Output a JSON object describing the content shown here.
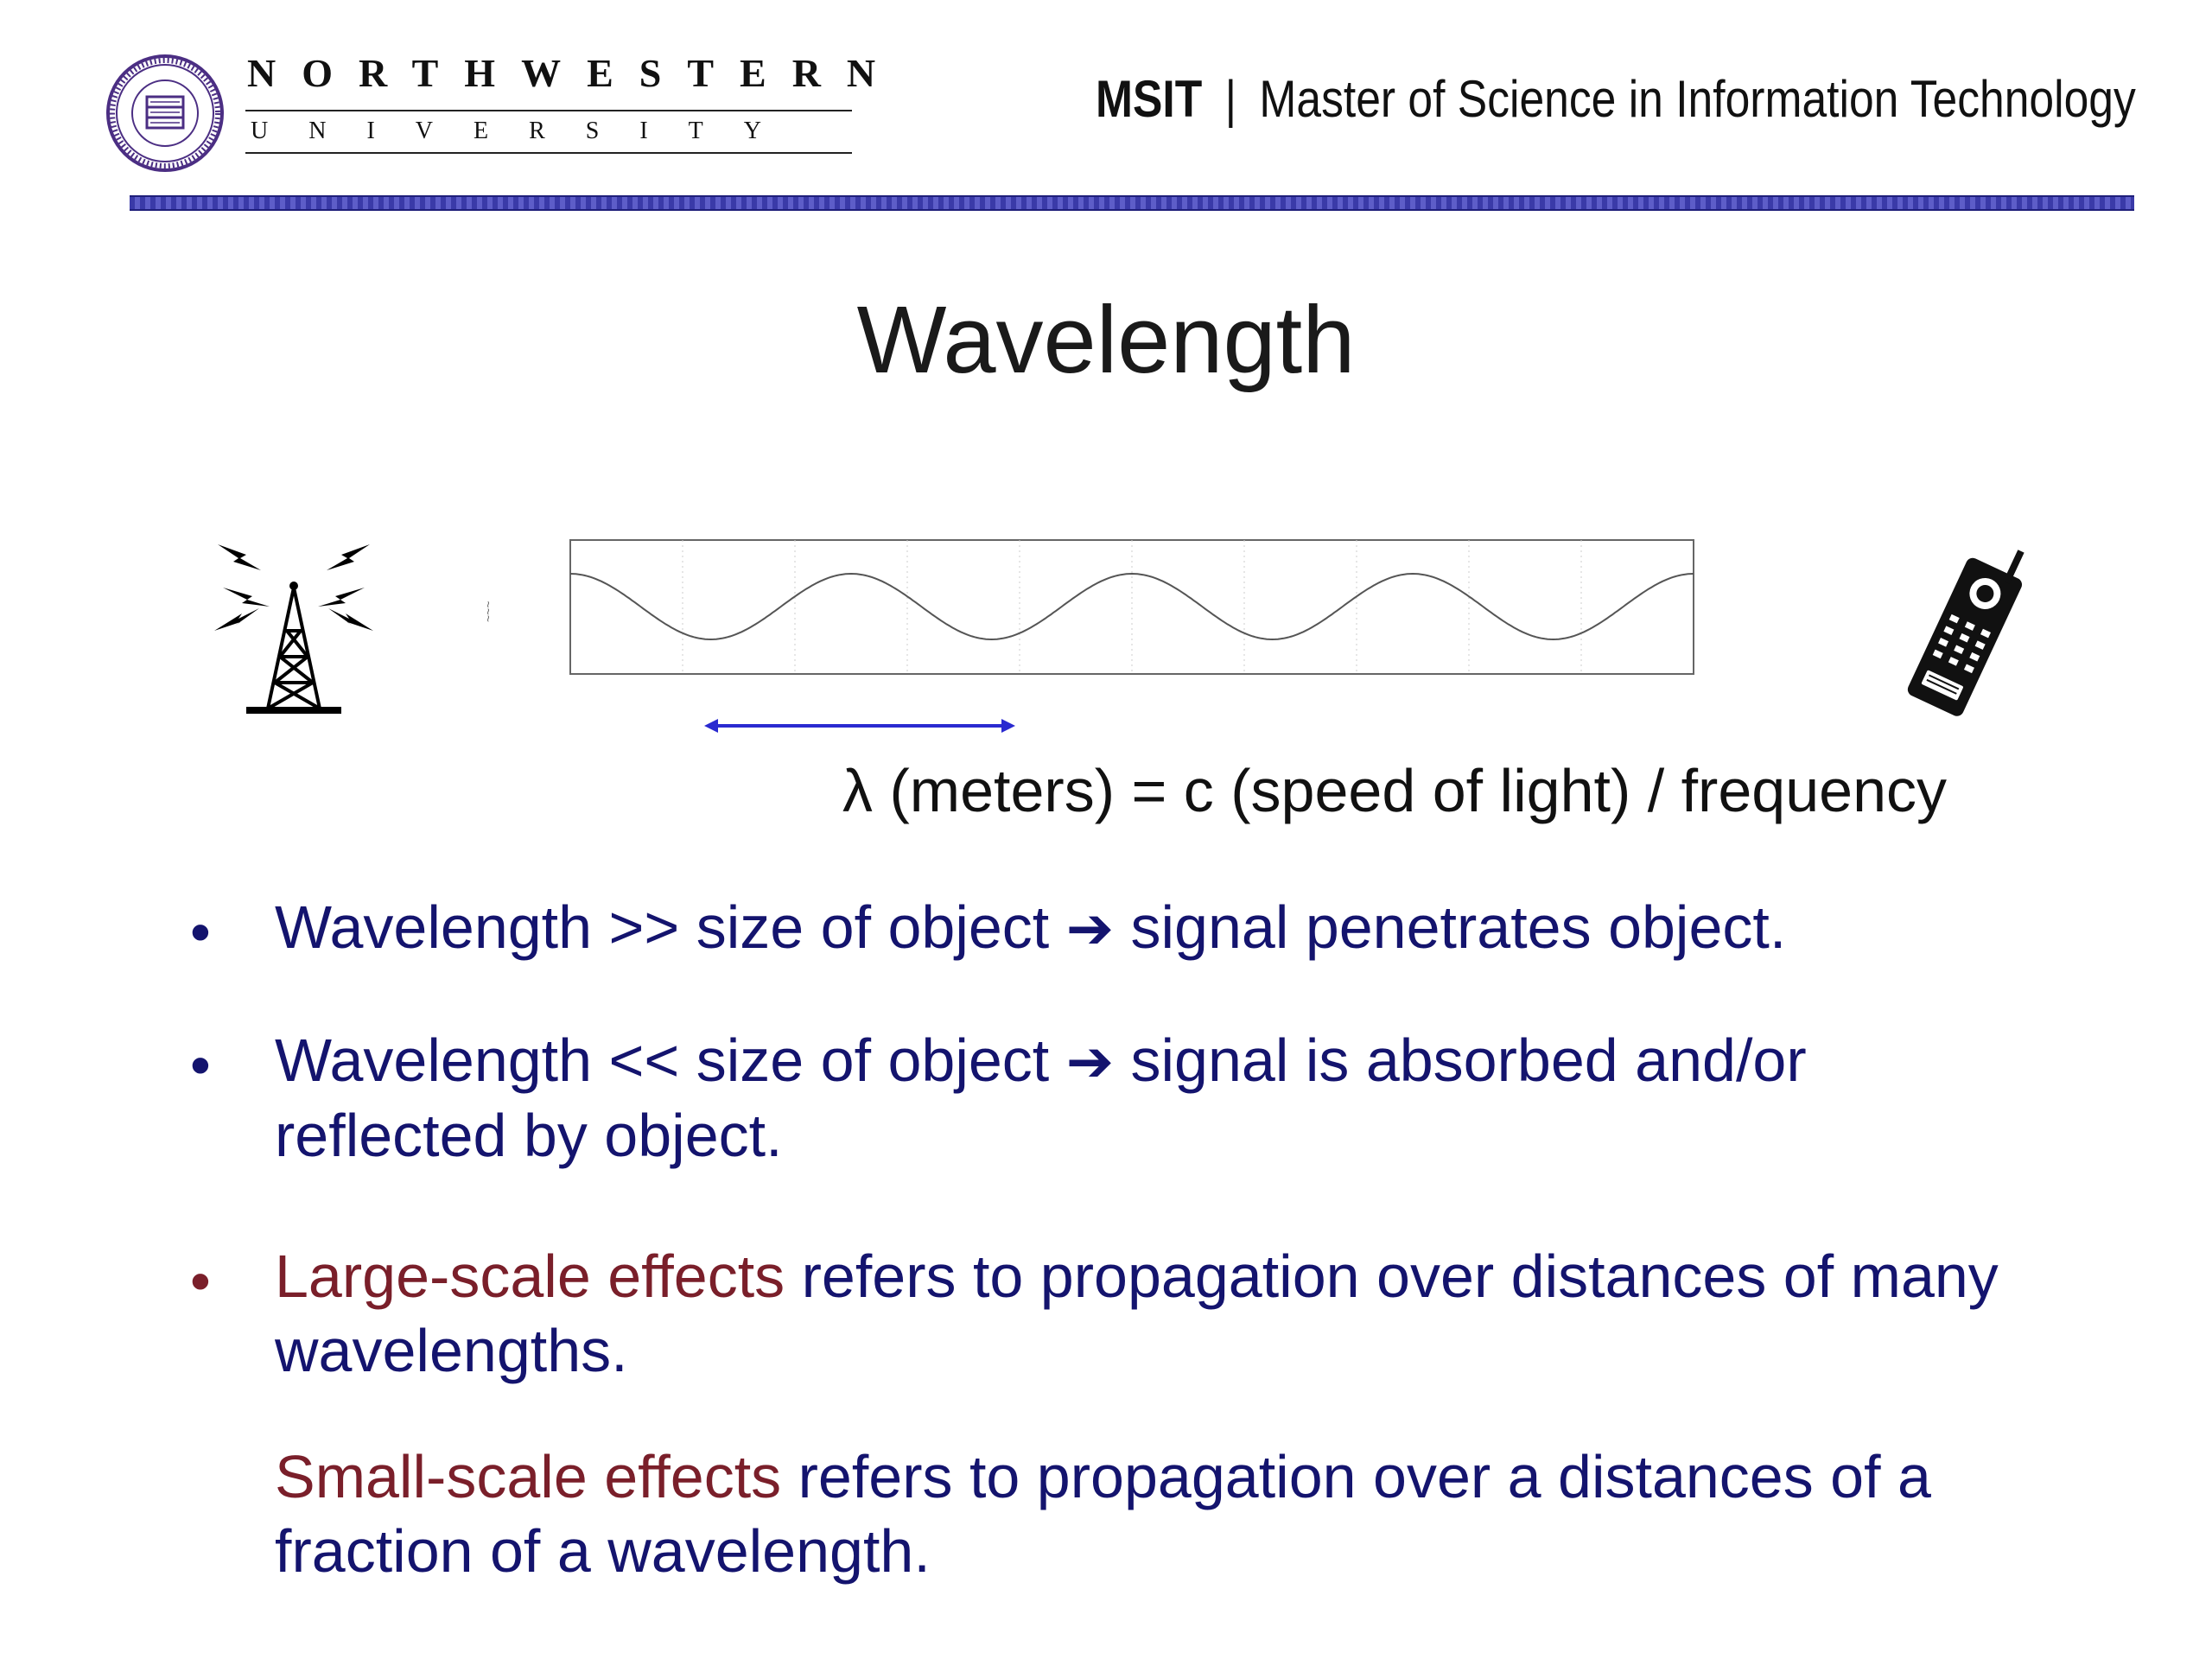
{
  "header": {
    "logo": {
      "wordmark_top": "NORTHWESTERN",
      "wordmark_bottom": "UNIVERSITY",
      "seal_icon": "northwestern-seal-icon"
    },
    "program_abbr": "MSIT",
    "program_sep": "|",
    "program_name": "Master of Science in Information Technology"
  },
  "title": "Wavelength",
  "diagram": {
    "left_icon": "radio-tower-icon",
    "right_icon": "cell-phone-icon",
    "wave_cycles": 4,
    "formula": "λ (meters) = c (speed of light) / frequency"
  },
  "bullets": [
    {
      "marker": "•",
      "pre": "Wavelength >> size of object ",
      "arrow": "➔",
      "post": " signal penetrates object."
    },
    {
      "marker": "•",
      "pre": "Wavelength << size of object ",
      "arrow": "➔",
      "post": " signal is absorbed and/or reflected by object."
    },
    {
      "marker": "•",
      "highlight": "Large-scale effects",
      "text": " refers to propagation over distances of many wavelengths."
    },
    {
      "highlight": "Small-scale effects",
      "text": " refers to propagation over a distances of a fraction of a wavelength."
    }
  ],
  "colors": {
    "body_text": "#14146e",
    "highlight": "#7a1f2a",
    "rule": "#3a3aa8"
  }
}
